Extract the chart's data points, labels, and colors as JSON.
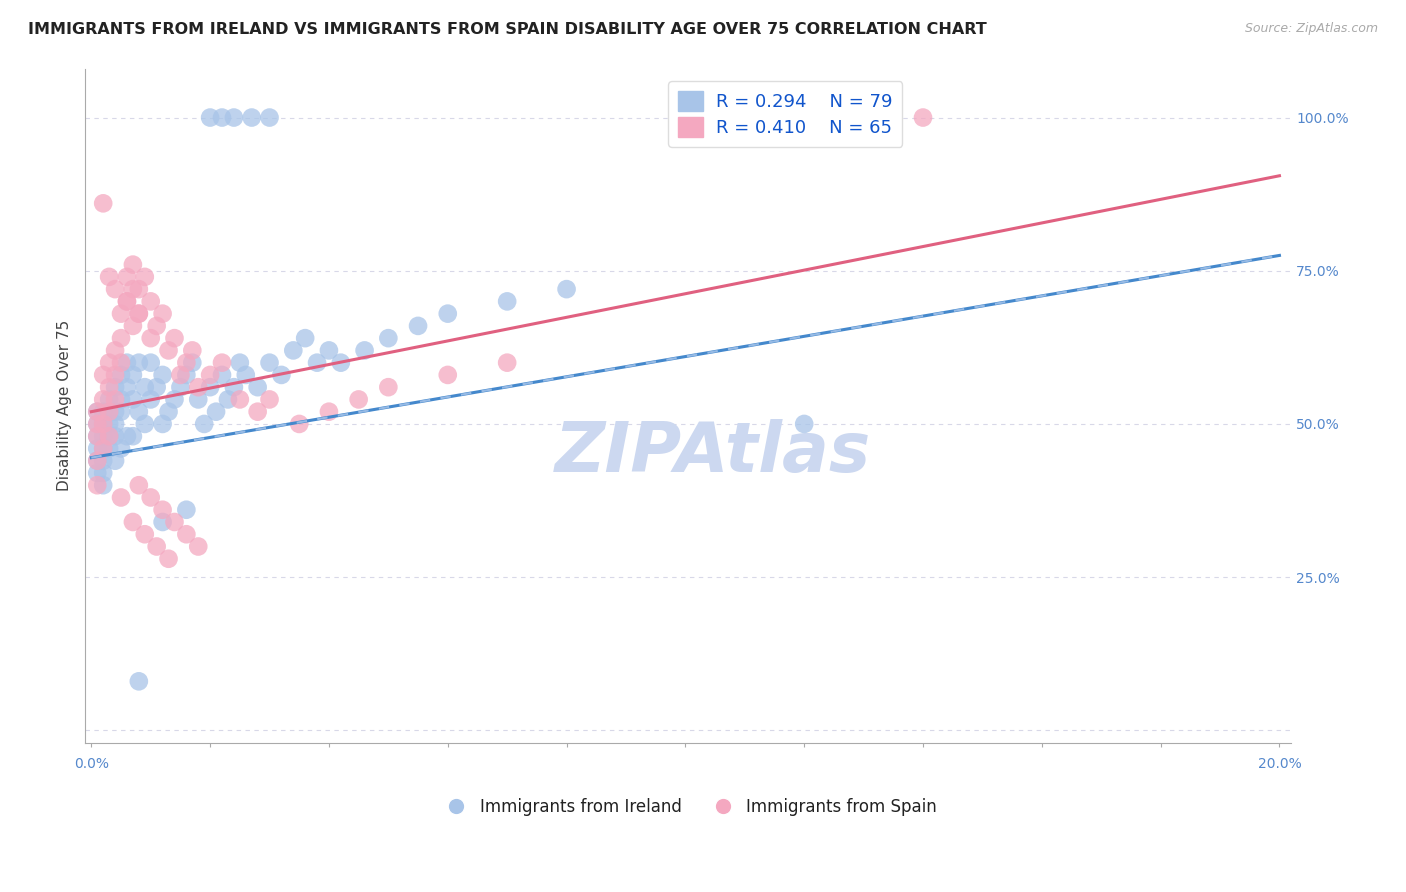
{
  "title": "IMMIGRANTS FROM IRELAND VS IMMIGRANTS FROM SPAIN DISABILITY AGE OVER 75 CORRELATION CHART",
  "source": "Source: ZipAtlas.com",
  "ylabel": "Disability Age Over 75",
  "legend_label1": "Immigrants from Ireland",
  "legend_label2": "Immigrants from Spain",
  "R1": 0.294,
  "N1": 79,
  "R2": 0.41,
  "N2": 65,
  "color1": "#a8c4e8",
  "color2": "#f4a8c0",
  "line_color1": "#4488cc",
  "line_color2": "#e06080",
  "line_color1_dash": "#a0c0e8",
  "background_color": "#ffffff",
  "grid_color": "#d8d8e8",
  "watermark_color": "#ccd8f0",
  "title_fontsize": 11.5,
  "axis_label_fontsize": 11,
  "tick_fontsize": 10,
  "legend_fontsize": 13,
  "scatter_size": 180,
  "scatter_alpha": 0.75,
  "line_width": 2.2,
  "xmin": -0.001,
  "xmax": 0.202,
  "ymin": -0.02,
  "ymax": 1.08,
  "ireland_x": [
    0.001,
    0.001,
    0.001,
    0.001,
    0.001,
    0.001,
    0.002,
    0.002,
    0.002,
    0.002,
    0.002,
    0.002,
    0.002,
    0.003,
    0.003,
    0.003,
    0.003,
    0.003,
    0.004,
    0.004,
    0.004,
    0.004,
    0.004,
    0.005,
    0.005,
    0.005,
    0.005,
    0.006,
    0.006,
    0.006,
    0.007,
    0.007,
    0.007,
    0.008,
    0.008,
    0.009,
    0.009,
    0.01,
    0.01,
    0.011,
    0.012,
    0.012,
    0.013,
    0.014,
    0.015,
    0.016,
    0.017,
    0.018,
    0.019,
    0.02,
    0.021,
    0.022,
    0.023,
    0.024,
    0.025,
    0.026,
    0.028,
    0.03,
    0.032,
    0.034,
    0.036,
    0.038,
    0.04,
    0.042,
    0.046,
    0.05,
    0.055,
    0.06,
    0.07,
    0.08,
    0.02,
    0.022,
    0.024,
    0.027,
    0.03,
    0.12,
    0.016,
    0.012,
    0.008
  ],
  "ireland_y": [
    0.5,
    0.48,
    0.46,
    0.52,
    0.44,
    0.42,
    0.5,
    0.48,
    0.52,
    0.46,
    0.42,
    0.44,
    0.4,
    0.5,
    0.52,
    0.48,
    0.46,
    0.54,
    0.5,
    0.52,
    0.56,
    0.48,
    0.44,
    0.52,
    0.54,
    0.58,
    0.46,
    0.56,
    0.6,
    0.48,
    0.54,
    0.58,
    0.48,
    0.6,
    0.52,
    0.56,
    0.5,
    0.54,
    0.6,
    0.56,
    0.58,
    0.5,
    0.52,
    0.54,
    0.56,
    0.58,
    0.6,
    0.54,
    0.5,
    0.56,
    0.52,
    0.58,
    0.54,
    0.56,
    0.6,
    0.58,
    0.56,
    0.6,
    0.58,
    0.62,
    0.64,
    0.6,
    0.62,
    0.6,
    0.62,
    0.64,
    0.66,
    0.68,
    0.7,
    0.72,
    1.0,
    1.0,
    1.0,
    1.0,
    1.0,
    0.5,
    0.36,
    0.34,
    0.08
  ],
  "spain_x": [
    0.001,
    0.001,
    0.001,
    0.001,
    0.001,
    0.002,
    0.002,
    0.002,
    0.002,
    0.003,
    0.003,
    0.003,
    0.003,
    0.004,
    0.004,
    0.004,
    0.005,
    0.005,
    0.005,
    0.006,
    0.006,
    0.007,
    0.007,
    0.007,
    0.008,
    0.008,
    0.009,
    0.01,
    0.01,
    0.011,
    0.012,
    0.013,
    0.014,
    0.015,
    0.016,
    0.017,
    0.018,
    0.02,
    0.022,
    0.025,
    0.028,
    0.03,
    0.035,
    0.04,
    0.045,
    0.05,
    0.06,
    0.07,
    0.008,
    0.01,
    0.012,
    0.014,
    0.016,
    0.018,
    0.005,
    0.007,
    0.009,
    0.011,
    0.013,
    0.003,
    0.004,
    0.006,
    0.008,
    0.14,
    0.002
  ],
  "spain_y": [
    0.5,
    0.52,
    0.48,
    0.44,
    0.4,
    0.54,
    0.58,
    0.5,
    0.46,
    0.56,
    0.6,
    0.52,
    0.48,
    0.58,
    0.62,
    0.54,
    0.64,
    0.68,
    0.6,
    0.7,
    0.74,
    0.72,
    0.76,
    0.66,
    0.72,
    0.68,
    0.74,
    0.7,
    0.64,
    0.66,
    0.68,
    0.62,
    0.64,
    0.58,
    0.6,
    0.62,
    0.56,
    0.58,
    0.6,
    0.54,
    0.52,
    0.54,
    0.5,
    0.52,
    0.54,
    0.56,
    0.58,
    0.6,
    0.4,
    0.38,
    0.36,
    0.34,
    0.32,
    0.3,
    0.38,
    0.34,
    0.32,
    0.3,
    0.28,
    0.74,
    0.72,
    0.7,
    0.68,
    1.0,
    0.86
  ]
}
